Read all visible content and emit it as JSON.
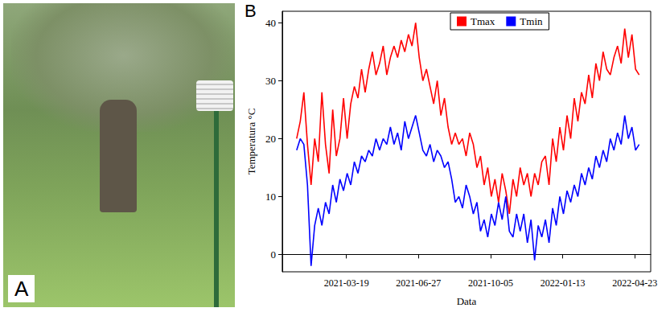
{
  "photo_panel": {
    "label": "A"
  },
  "chart_data": {
    "type": "line",
    "panel_label": "B",
    "x_label": "Data",
    "y_label": "Temperatura °C",
    "xlim": [
      "2020-12-20",
      "2022-05-15"
    ],
    "xticks": [
      "2021-03-19",
      "2021-06-27",
      "2021-10-05",
      "2022-01-13",
      "2022-04-23"
    ],
    "ylim": [
      -3,
      42
    ],
    "yticks": [
      0,
      10,
      20,
      30,
      40
    ],
    "grid": false,
    "legend": "top",
    "x": [
      "2021-01-09",
      "2021-01-14",
      "2021-01-19",
      "2021-01-24",
      "2021-01-29",
      "2021-02-03",
      "2021-02-08",
      "2021-02-13",
      "2021-02-18",
      "2021-02-23",
      "2021-02-28",
      "2021-03-05",
      "2021-03-10",
      "2021-03-15",
      "2021-03-20",
      "2021-03-25",
      "2021-03-30",
      "2021-04-04",
      "2021-04-09",
      "2021-04-14",
      "2021-04-19",
      "2021-04-24",
      "2021-04-29",
      "2021-05-04",
      "2021-05-09",
      "2021-05-14",
      "2021-05-19",
      "2021-05-24",
      "2021-05-29",
      "2021-06-03",
      "2021-06-08",
      "2021-06-13",
      "2021-06-18",
      "2021-06-23",
      "2021-06-28",
      "2021-07-03",
      "2021-07-08",
      "2021-07-13",
      "2021-07-18",
      "2021-07-23",
      "2021-07-28",
      "2021-08-02",
      "2021-08-07",
      "2021-08-12",
      "2021-08-17",
      "2021-08-22",
      "2021-08-27",
      "2021-09-01",
      "2021-09-06",
      "2021-09-11",
      "2021-09-16",
      "2021-09-21",
      "2021-09-26",
      "2021-10-01",
      "2021-10-06",
      "2021-10-11",
      "2021-10-16",
      "2021-10-21",
      "2021-10-26",
      "2021-10-31",
      "2021-11-05",
      "2021-11-10",
      "2021-11-15",
      "2021-11-20",
      "2021-11-25",
      "2021-11-30",
      "2021-12-05",
      "2021-12-10",
      "2021-12-15",
      "2021-12-20",
      "2021-12-25",
      "2021-12-30",
      "2022-01-04",
      "2022-01-09",
      "2022-01-14",
      "2022-01-19",
      "2022-01-24",
      "2022-01-29",
      "2022-02-03",
      "2022-02-08",
      "2022-02-13",
      "2022-02-18",
      "2022-02-23",
      "2022-02-28",
      "2022-03-05",
      "2022-03-10",
      "2022-03-15",
      "2022-03-20",
      "2022-03-25",
      "2022-03-30",
      "2022-04-04",
      "2022-04-09",
      "2022-04-14",
      "2022-04-19",
      "2022-04-24",
      "2022-04-29"
    ],
    "series": [
      {
        "name": "Tmax",
        "color": "#ff0000",
        "values": [
          20,
          23,
          28,
          19,
          12,
          20,
          16,
          28,
          19,
          14,
          25,
          17,
          20,
          27,
          20,
          26,
          29,
          27,
          32,
          28,
          32,
          35,
          31,
          33,
          36,
          31,
          34,
          36,
          34,
          37,
          35,
          38,
          36,
          40,
          34,
          30,
          32,
          29,
          26,
          30,
          24,
          27,
          22,
          19,
          21,
          19,
          20,
          17,
          21,
          19,
          15,
          17,
          12,
          15,
          10,
          13,
          9,
          14,
          11,
          7,
          13,
          10,
          15,
          12,
          14,
          10,
          14,
          12,
          16,
          17,
          12,
          20,
          16,
          22,
          18,
          24,
          20,
          27,
          23,
          28,
          26,
          31,
          27,
          33,
          30,
          35,
          32,
          31,
          34,
          36,
          33,
          39,
          34,
          38,
          32,
          31
        ]
      },
      {
        "name": "Tmin",
        "color": "#0000ff",
        "values": [
          18,
          20,
          19,
          12,
          -2,
          5,
          8,
          5,
          9,
          7,
          12,
          9,
          13,
          11,
          14,
          12,
          16,
          14,
          17,
          16,
          18,
          17,
          20,
          18,
          20,
          19,
          22,
          19,
          21,
          18,
          23,
          20,
          22,
          24,
          21,
          18,
          17,
          19,
          16,
          18,
          17,
          15,
          16,
          13,
          9,
          10,
          8,
          12,
          10,
          7,
          9,
          4,
          6,
          3,
          7,
          5,
          9,
          6,
          10,
          4,
          3,
          7,
          4,
          7,
          2,
          6,
          -1,
          5,
          3,
          6,
          2,
          8,
          5,
          10,
          7,
          11,
          9,
          12,
          10,
          14,
          12,
          15,
          13,
          17,
          15,
          18,
          16,
          20,
          18,
          21,
          19,
          24,
          20,
          22,
          18,
          19
        ]
      }
    ]
  }
}
